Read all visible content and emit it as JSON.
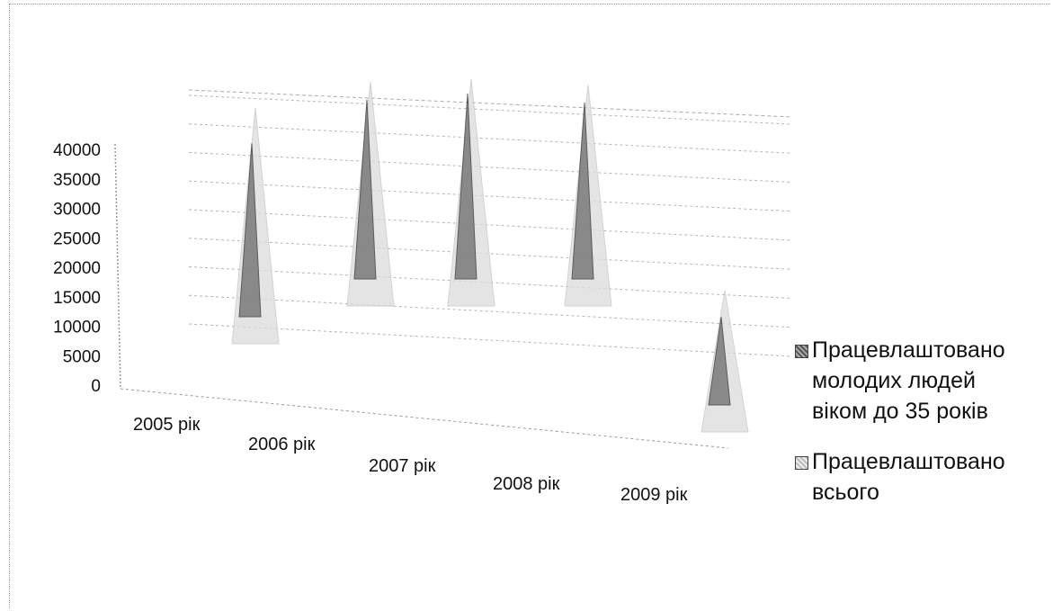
{
  "chart_data": {
    "type": "bar",
    "categories": [
      "2005 рік",
      "2006 рік",
      "2007 рік",
      "2008 рік",
      "2009 рік"
    ],
    "series": [
      {
        "name": "Працевлаштовано молодих людей віком до 35 років",
        "values": [
          34000,
          35000,
          36000,
          34500,
          19500
        ],
        "color": "#555555"
      },
      {
        "name": "Працевлаштовано всього",
        "values": [
          40000,
          38000,
          38500,
          37500,
          24000
        ],
        "color": "#bbbbbb"
      }
    ],
    "yticks": [
      "40000",
      "35000",
      "30000",
      "25000",
      "20000",
      "15000",
      "10000",
      "5000",
      "0"
    ],
    "ylim": [
      0,
      40000
    ],
    "legend_position": "right",
    "grid": true
  }
}
